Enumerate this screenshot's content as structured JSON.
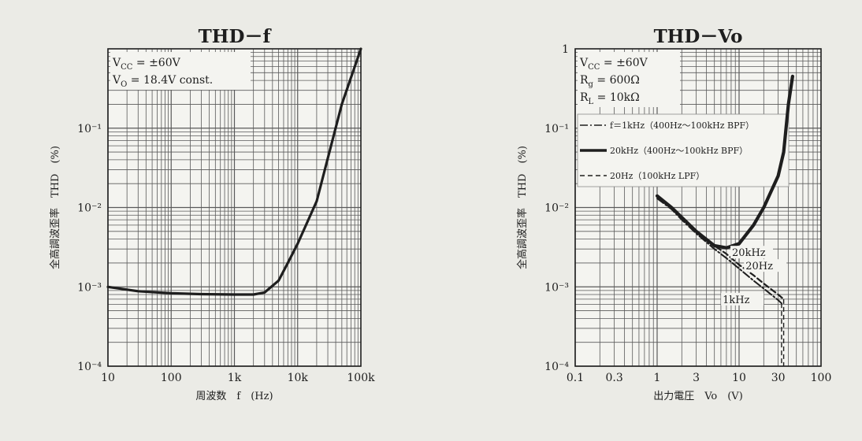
{
  "chart_data": [
    {
      "type": "line",
      "title": "THD－f",
      "xlabel": "周波数　f　(Hz)",
      "ylabel": "全高調波歪率　THD　(%)",
      "xscale": "log",
      "yscale": "log",
      "xlim": [
        10,
        100000
      ],
      "ylim": [
        0.0001,
        1
      ],
      "xtick_labels": [
        "10",
        "100",
        "1k",
        "10k",
        "100k"
      ],
      "ytick_labels": [
        "10⁻⁴",
        "10⁻³",
        "10⁻²",
        "10⁻¹"
      ],
      "annotations": [
        "V_CC = ±60V",
        "V_O = 18.4V const."
      ],
      "series": [
        {
          "x": [
            10,
            30,
            100,
            300,
            1000,
            2000,
            3000,
            5000,
            7000,
            10000,
            20000,
            50000,
            100000
          ],
          "y": [
            0.001,
            0.00088,
            0.00083,
            0.00081,
            0.0008,
            0.0008,
            0.00085,
            0.0012,
            0.002,
            0.0035,
            0.012,
            0.2,
            1.0
          ]
        }
      ]
    },
    {
      "type": "line",
      "title": "THD－Vo",
      "xlabel": "出力電圧　Vo　(V)",
      "ylabel": "全高調波歪率　THD　(%)",
      "xscale": "log",
      "yscale": "log",
      "xlim": [
        0.1,
        100
      ],
      "ylim": [
        0.0001,
        1
      ],
      "xtick_labels": [
        "0.1",
        "0.3",
        "1",
        "3",
        "10",
        "30",
        "100"
      ],
      "ytick_labels": [
        "1",
        "10⁻¹",
        "10⁻²",
        "10⁻³",
        "10⁻⁴"
      ],
      "annotations": [
        "V_CC = ±60V",
        "R_g = 600Ω",
        "R_L = 10kΩ"
      ],
      "legend": [
        "f＝1kHz（400Hz～100kHz BPF）",
        "20kHz（400Hz～100kHz BPF）",
        "20Hz（100kHz LPF）"
      ],
      "curve_labels": [
        "20kHz",
        "20Hz",
        "1kHz"
      ],
      "series": [
        {
          "name": "20kHz",
          "x": [
            1.0,
            1.5,
            2,
            3,
            5,
            7,
            10,
            15,
            20,
            30,
            35,
            40,
            45
          ],
          "y": [
            0.014,
            0.01,
            0.0075,
            0.005,
            0.0033,
            0.0031,
            0.0035,
            0.006,
            0.01,
            0.025,
            0.05,
            0.2,
            0.45
          ]
        },
        {
          "name": "20Hz",
          "x": [
            1.0,
            1.5,
            2,
            3,
            5,
            7,
            10,
            15,
            20,
            30,
            35
          ],
          "y": [
            0.014,
            0.01,
            0.0075,
            0.005,
            0.0033,
            0.0026,
            0.0019,
            0.0014,
            0.0011,
            0.0008,
            0.0007
          ]
        },
        {
          "name": "1kHz",
          "x": [
            1.0,
            1.5,
            2,
            3,
            5,
            7,
            10,
            15,
            20,
            30,
            33
          ],
          "y": [
            0.013,
            0.0095,
            0.007,
            0.0047,
            0.003,
            0.0023,
            0.0017,
            0.0012,
            0.00095,
            0.00068,
            0.00062
          ]
        }
      ]
    }
  ]
}
